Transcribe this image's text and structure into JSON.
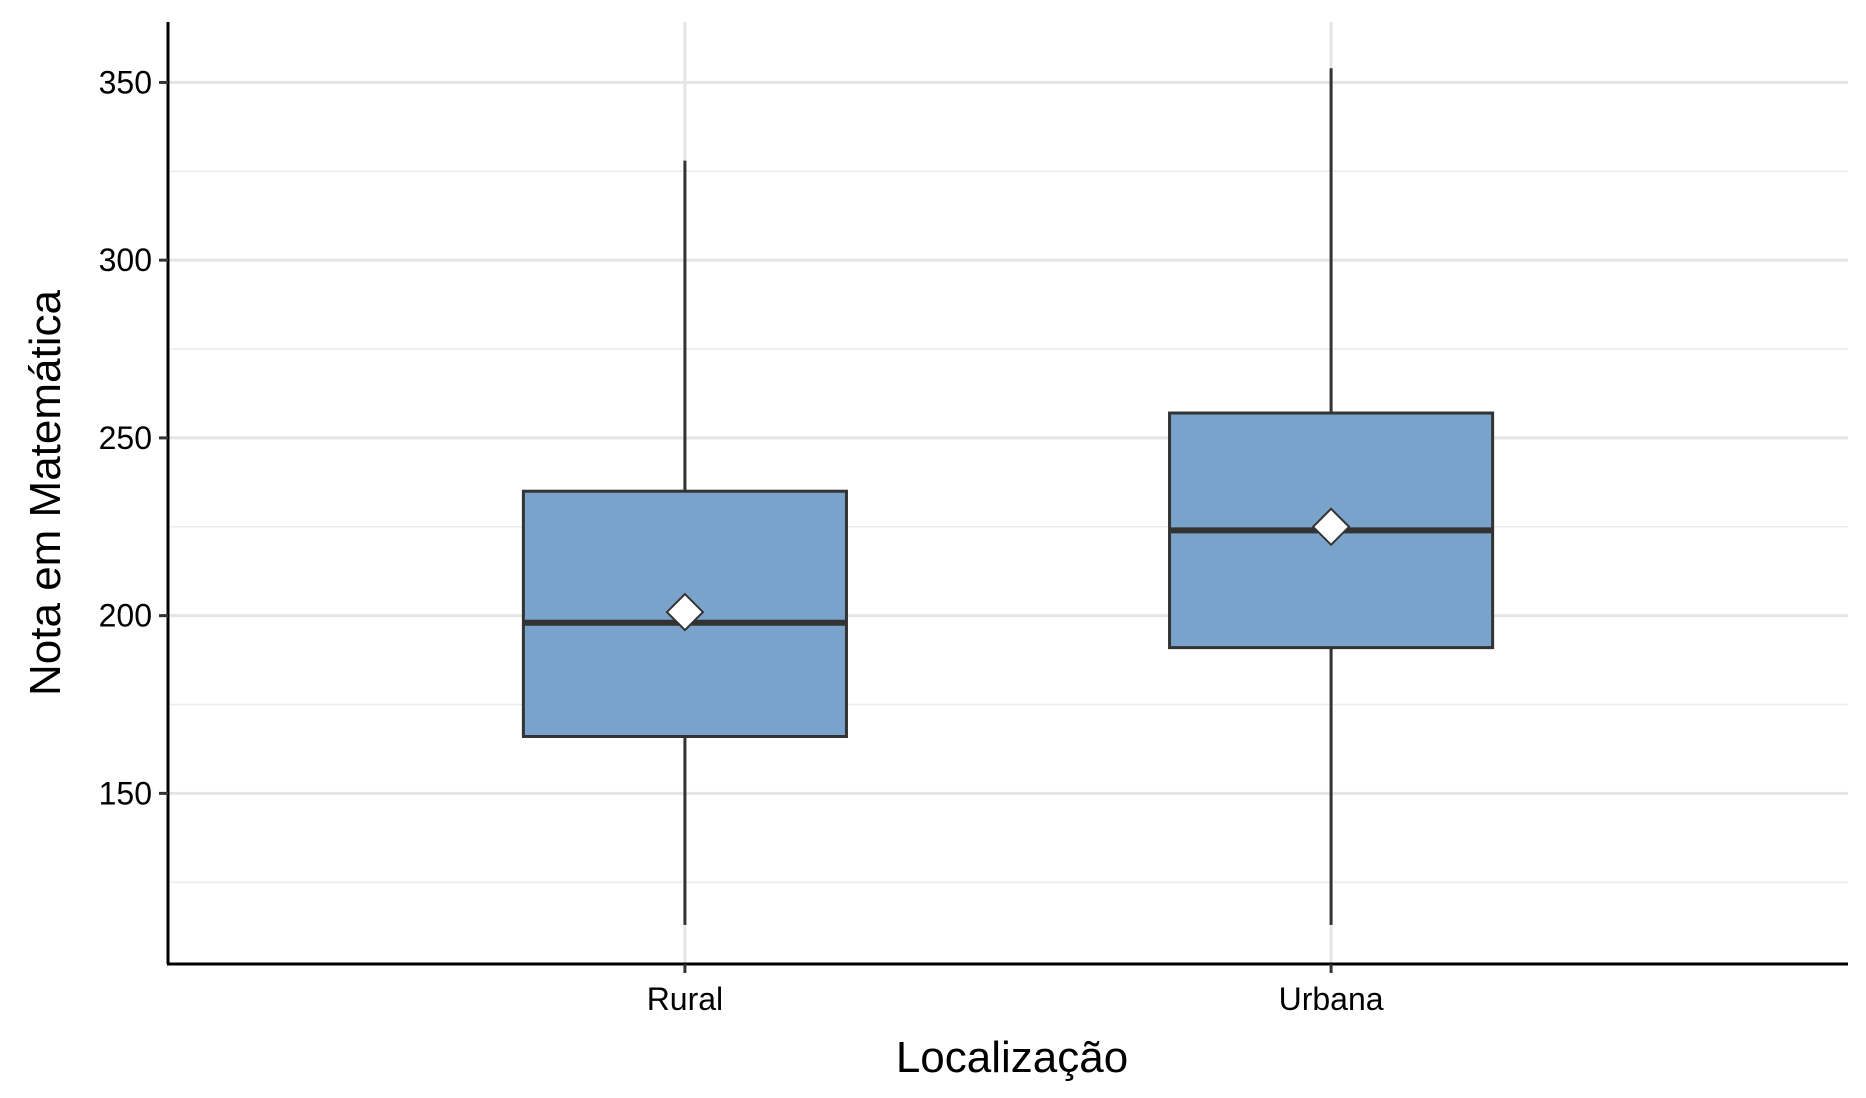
{
  "chart_data": {
    "type": "boxplot",
    "title": "",
    "xlabel": "Localização",
    "ylabel": "Nota em Matemática",
    "ylim": [
      102,
      367
    ],
    "yticks": [
      150,
      200,
      250,
      300,
      350
    ],
    "grid": true,
    "legend": "none",
    "box_fill": "#7aa3cb",
    "box_stroke": "#333333",
    "mean_marker_fill": "#ffffff",
    "mean_marker_shape": "diamond",
    "categories": [
      "Rural",
      "Urbana"
    ],
    "boxes": [
      {
        "category": "Rural",
        "whisker_low": 113,
        "q1": 166,
        "median": 198,
        "q3": 235,
        "whisker_high": 328,
        "mean": 201
      },
      {
        "category": "Urbana",
        "whisker_low": 113,
        "q1": 191,
        "median": 224,
        "q3": 257,
        "whisker_high": 354,
        "mean": 225
      }
    ]
  }
}
